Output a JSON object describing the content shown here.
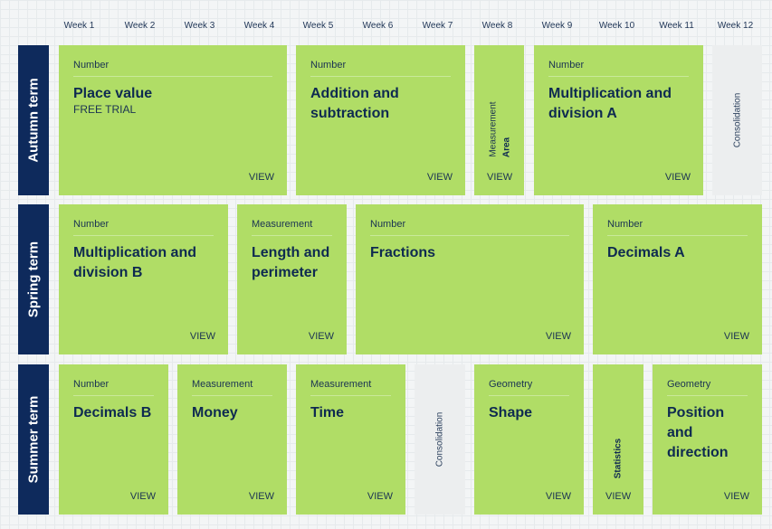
{
  "weeks": [
    "Week 1",
    "Week 2",
    "Week 3",
    "Week 4",
    "Week 5",
    "Week 6",
    "Week 7",
    "Week 8",
    "Week 9",
    "Week 10",
    "Week 11",
    "Week 12"
  ],
  "terms": {
    "autumn": "Autumn term",
    "spring": "Spring term",
    "summer": "Summer term"
  },
  "view_label": "VIEW",
  "autumn": {
    "place_value": {
      "category": "Number",
      "title": "Place value",
      "subtitle": "FREE TRIAL"
    },
    "addition": {
      "category": "Number",
      "title": "Addition and subtraction"
    },
    "area": {
      "category": "Measurement",
      "title": "Area"
    },
    "mult_a": {
      "category": "Number",
      "title": "Multiplication and division A"
    },
    "consolidation": "Consolidation"
  },
  "spring": {
    "mult_b": {
      "category": "Number",
      "title": "Multiplication and division B"
    },
    "length": {
      "category": "Measurement",
      "title": "Length and perimeter"
    },
    "fractions": {
      "category": "Number",
      "title": "Fractions"
    },
    "decimals_a": {
      "category": "Number",
      "title": "Decimals A"
    }
  },
  "summer": {
    "decimals_b": {
      "category": "Number",
      "title": "Decimals B"
    },
    "money": {
      "category": "Measurement",
      "title": "Money"
    },
    "time": {
      "category": "Measurement",
      "title": "Time"
    },
    "consolidation": "Consolidation",
    "shape": {
      "category": "Geometry",
      "title": "Shape"
    },
    "statistics": {
      "title": "Statistics"
    },
    "position": {
      "category": "Geometry",
      "title": "Position and direction"
    }
  },
  "colors": {
    "card_green": "#b0dd66",
    "term_navy": "#0e2a5c",
    "consolidation_grey": "#eceeef",
    "text_navy": "#0e2a50"
  }
}
